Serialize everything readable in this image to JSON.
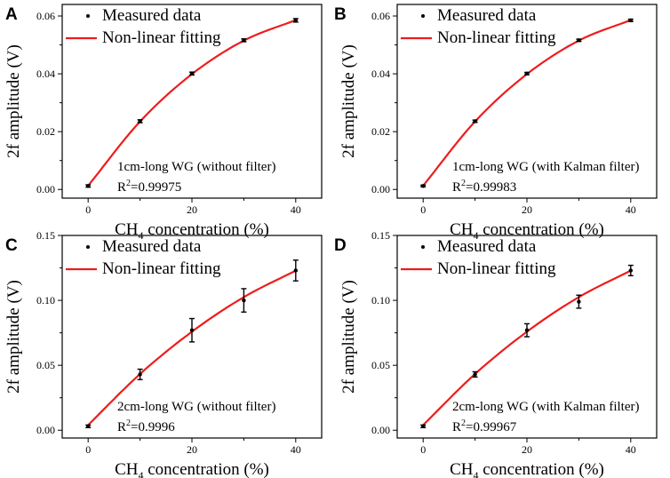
{
  "chart_data": [
    {
      "panel": "A",
      "type": "scatter",
      "x": [
        0,
        10,
        20,
        30,
        40
      ],
      "y": [
        0.0012,
        0.0236,
        0.0401,
        0.0516,
        0.0585
      ],
      "yerr": [
        0.0004,
        0.0005,
        0.0005,
        0.0005,
        0.0006
      ],
      "fit": [
        0.0013,
        0.0235,
        0.0399,
        0.0515,
        0.0586
      ],
      "xlabel_main": "CH",
      "xlabel_sub": "4",
      "xlabel_rest": " concentration (%)",
      "ylabel": "2f amplitude (V)",
      "xlim": [
        -5,
        45
      ],
      "ylim": [
        -0.003,
        0.064
      ],
      "xticks": [
        0,
        20,
        40
      ],
      "xtick_labels": [
        "0",
        "20",
        "40"
      ],
      "yticks": [
        0.0,
        0.02,
        0.04,
        0.06
      ],
      "ytick_labels": [
        "0.00",
        "0.02",
        "0.04",
        "0.06"
      ],
      "legend": {
        "markers": "Measured data",
        "fit": "Non-linear fitting",
        "placement": "top-left"
      },
      "annotation": "1cm-long WG (without filter)",
      "r2_prefix": "R",
      "r2_sup": "2",
      "r2_value": "=0.99975",
      "fit_color": "#ee1c1c"
    },
    {
      "panel": "B",
      "type": "scatter",
      "x": [
        0,
        10,
        20,
        30,
        40
      ],
      "y": [
        0.0012,
        0.0236,
        0.0401,
        0.0516,
        0.0585
      ],
      "yerr": [
        0.0003,
        0.0004,
        0.0004,
        0.0004,
        0.0004
      ],
      "fit": [
        0.0013,
        0.0235,
        0.0399,
        0.0515,
        0.0586
      ],
      "xlabel_main": "CH",
      "xlabel_sub": "4",
      "xlabel_rest": " concentration (%)",
      "ylabel": "2f amplitude (V)",
      "xlim": [
        -5,
        45
      ],
      "ylim": [
        -0.003,
        0.064
      ],
      "xticks": [
        0,
        20,
        40
      ],
      "xtick_labels": [
        "0",
        "20",
        "40"
      ],
      "yticks": [
        0.0,
        0.02,
        0.04,
        0.06
      ],
      "ytick_labels": [
        "0.00",
        "0.02",
        "0.04",
        "0.06"
      ],
      "legend": {
        "markers": "Measured data",
        "fit": "Non-linear fitting",
        "placement": "top-left"
      },
      "annotation": "1cm-long WG (with Kalman filter)",
      "r2_prefix": "R",
      "r2_sup": "2",
      "r2_value": "=0.99983",
      "fit_color": "#ee1c1c"
    },
    {
      "panel": "C",
      "type": "scatter",
      "x": [
        0,
        10,
        20,
        30,
        40
      ],
      "y": [
        0.003,
        0.043,
        0.077,
        0.1,
        0.123
      ],
      "yerr": [
        0.001,
        0.004,
        0.009,
        0.009,
        0.008
      ],
      "fit": [
        0.004,
        0.0433,
        0.0759,
        0.1025,
        0.1229
      ],
      "xlabel_main": "CH",
      "xlabel_sub": "4",
      "xlabel_rest": " concentration (%)",
      "ylabel": "2f amplitude (V)",
      "xlim": [
        -5,
        45
      ],
      "ylim": [
        -0.006,
        0.15
      ],
      "xticks": [
        0,
        20,
        40
      ],
      "xtick_labels": [
        "0",
        "20",
        "40"
      ],
      "yticks": [
        0.0,
        0.05,
        0.1,
        0.15
      ],
      "ytick_labels": [
        "0.00",
        "0.05",
        "0.10",
        "0.15"
      ],
      "legend": {
        "markers": "Measured data",
        "fit": "Non-linear fitting",
        "placement": "top-left"
      },
      "annotation": "2cm-long WG (without filter)",
      "r2_prefix": "R",
      "r2_sup": "2",
      "r2_value": "=0.9996",
      "fit_color": "#ee1c1c"
    },
    {
      "panel": "D",
      "type": "scatter",
      "x": [
        0,
        10,
        20,
        30,
        40
      ],
      "y": [
        0.003,
        0.043,
        0.077,
        0.099,
        0.123
      ],
      "yerr": [
        0.001,
        0.002,
        0.005,
        0.005,
        0.004
      ],
      "fit": [
        0.004,
        0.0433,
        0.0759,
        0.1025,
        0.1229
      ],
      "xlabel_main": "CH",
      "xlabel_sub": "4",
      "xlabel_rest": " concentration (%)",
      "ylabel": "2f amplitude (V)",
      "xlim": [
        -5,
        45
      ],
      "ylim": [
        -0.006,
        0.15
      ],
      "xticks": [
        0,
        20,
        40
      ],
      "xtick_labels": [
        "0",
        "20",
        "40"
      ],
      "yticks": [
        0.0,
        0.05,
        0.1,
        0.15
      ],
      "ytick_labels": [
        "0.00",
        "0.05",
        "0.10",
        "0.15"
      ],
      "legend": {
        "markers": "Measured data",
        "fit": "Non-linear fitting",
        "placement": "top-left"
      },
      "annotation": "2cm-long WG (with Kalman filter)",
      "r2_prefix": "R",
      "r2_sup": "2",
      "r2_value": "=0.99967",
      "fit_color": "#ee1c1c"
    }
  ]
}
